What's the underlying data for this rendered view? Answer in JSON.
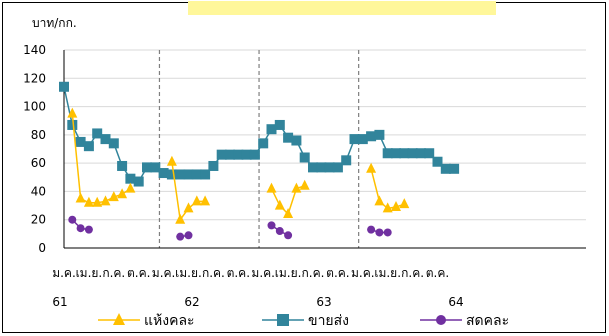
{
  "chart_data": {
    "type": "line",
    "ylabel": "บาท/กก.",
    "ylim": [
      0,
      140
    ],
    "yticks": [
      0,
      20,
      40,
      60,
      80,
      100,
      120,
      140
    ],
    "month_labels": [
      "ม.ค.",
      "เม.ย.",
      "ก.ค.",
      "ต.ค."
    ],
    "year_labels": [
      "61",
      "62",
      "63",
      "64"
    ],
    "n_points": 48,
    "grid": "horizontal",
    "legend_position": "bottom",
    "series": [
      {
        "name": "แห้งคละ",
        "color": "#ffc000",
        "marker": "triangle",
        "values": [
          null,
          95,
          35,
          32,
          32,
          33,
          36,
          38,
          42,
          null,
          null,
          null,
          null,
          61,
          20,
          28,
          33,
          33,
          null,
          null,
          null,
          null,
          null,
          null,
          null,
          42,
          30,
          24,
          42,
          44,
          null,
          null,
          null,
          null,
          null,
          null,
          null,
          56,
          33,
          28,
          29,
          31,
          null,
          null,
          null,
          null,
          null,
          null
        ]
      },
      {
        "name": "ขายส่ง",
        "color": "#31849b",
        "marker": "square",
        "values": [
          114,
          87,
          75,
          72,
          81,
          77,
          74,
          58,
          49,
          47,
          57,
          57,
          53,
          52,
          52,
          52,
          52,
          52,
          58,
          66,
          66,
          66,
          66,
          66,
          74,
          84,
          87,
          78,
          76,
          64,
          57,
          57,
          57,
          57,
          62,
          77,
          77,
          79,
          80,
          67,
          67,
          67,
          67,
          67,
          67,
          61,
          56,
          56
        ]
      },
      {
        "name": "สดคละ",
        "color": "#7030a0",
        "marker": "circle",
        "values": [
          null,
          20,
          14,
          13,
          null,
          null,
          null,
          null,
          null,
          null,
          null,
          null,
          null,
          null,
          8,
          9,
          null,
          null,
          null,
          null,
          null,
          null,
          null,
          null,
          null,
          16,
          12,
          9,
          null,
          null,
          null,
          null,
          null,
          null,
          null,
          null,
          null,
          13,
          11,
          11,
          null,
          null,
          null,
          null,
          null,
          null,
          null,
          null
        ]
      }
    ]
  }
}
